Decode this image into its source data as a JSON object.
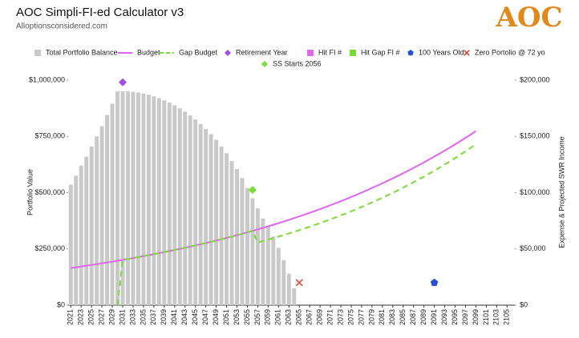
{
  "title": "AOC Simpli-FI-ed Calculator v3",
  "subtitle": "Alloptionsconsidered.com",
  "logo": "AOC",
  "chart_data": {
    "type": "combo",
    "x": [
      2021,
      2022,
      2023,
      2024,
      2025,
      2026,
      2027,
      2028,
      2029,
      2030,
      2031,
      2032,
      2033,
      2034,
      2035,
      2036,
      2037,
      2038,
      2039,
      2040,
      2041,
      2042,
      2043,
      2044,
      2045,
      2046,
      2047,
      2048,
      2049,
      2050,
      2051,
      2052,
      2053,
      2054,
      2055,
      2056,
      2057,
      2058,
      2059,
      2060,
      2061,
      2062,
      2063,
      2064,
      2065,
      2066,
      2067,
      2068,
      2069,
      2070,
      2071,
      2072,
      2073,
      2074,
      2075,
      2076,
      2077,
      2078,
      2079,
      2080,
      2081,
      2082,
      2083,
      2084,
      2085,
      2086,
      2087,
      2088,
      2089,
      2090,
      2091,
      2092,
      2093,
      2094,
      2095,
      2096,
      2097,
      2098,
      2099,
      2100,
      2101,
      2102,
      2103,
      2104,
      2105,
      2106
    ],
    "xlim": [
      2020.5,
      2106.5
    ],
    "xticks": [
      2021,
      2023,
      2025,
      2027,
      2029,
      2031,
      2033,
      2035,
      2037,
      2039,
      2041,
      2043,
      2045,
      2047,
      2049,
      2051,
      2053,
      2055,
      2057,
      2059,
      2061,
      2063,
      2065,
      2067,
      2069,
      2071,
      2073,
      2075,
      2077,
      2079,
      2081,
      2083,
      2085,
      2087,
      2089,
      2091,
      2093,
      2095,
      2097,
      2099,
      2101,
      2103,
      2105
    ],
    "ylim": [
      0,
      1000000
    ],
    "yticks": [
      {
        "value": 0,
        "label": "$0"
      },
      {
        "value": 250000,
        "label": "$250,000"
      },
      {
        "value": 500000,
        "label": "$500,000"
      },
      {
        "value": 750000,
        "label": "$750,000"
      },
      {
        "value": 1000000,
        "label": "$1,000,000"
      }
    ],
    "y2lim": [
      0,
      200000
    ],
    "y2ticks": [
      {
        "value": 0,
        "label": "$0"
      },
      {
        "value": 50000,
        "label": "$50,000"
      },
      {
        "value": 100000,
        "label": "$100,000"
      },
      {
        "value": 150000,
        "label": "$150,000"
      },
      {
        "value": 200000,
        "label": "$200,000"
      }
    ],
    "ylabel": "Portfolio Value",
    "y2label": "Expense & Projected SWR Income",
    "series": [
      {
        "name": "Total Portfolio Balance",
        "kind": "bar",
        "color": "#c9c9c9",
        "values": [
          535000,
          575000,
          620000,
          660000,
          705000,
          750000,
          795000,
          845000,
          895000,
          950000,
          950000,
          950000,
          948000,
          945000,
          940000,
          935000,
          928000,
          920000,
          910000,
          900000,
          888000,
          875000,
          860000,
          843000,
          825000,
          805000,
          783000,
          760000,
          735000,
          705000,
          675000,
          640000,
          605000,
          565000,
          520000,
          475000,
          430000,
          385000,
          350000,
          305000,
          255000,
          200000,
          140000,
          75000,
          null,
          null,
          null,
          null,
          null,
          null,
          null,
          null,
          null,
          null,
          null,
          null,
          null,
          null,
          null,
          null,
          null,
          null,
          null,
          null,
          null,
          null,
          null,
          null,
          null,
          null,
          null,
          null,
          null,
          null,
          null,
          null,
          null,
          null,
          null,
          null,
          null,
          null,
          null,
          null,
          null,
          null
        ]
      },
      {
        "name": "Budget",
        "kind": "line",
        "axis": "y2",
        "color": "#e066f0",
        "dash": false,
        "values": [
          33000,
          33660,
          34330,
          35020,
          35720,
          36430,
          37160,
          37910,
          38660,
          39440,
          40230,
          41030,
          41850,
          42690,
          43540,
          44410,
          45300,
          46210,
          47130,
          48070,
          49040,
          50020,
          51020,
          52040,
          53080,
          54140,
          55220,
          56330,
          57450,
          58600,
          59780,
          60970,
          62190,
          63440,
          64710,
          66000,
          67320,
          68670,
          70040,
          71440,
          72870,
          74330,
          75810,
          77330,
          78880,
          80450,
          82060,
          83700,
          85380,
          87090,
          88830,
          90600,
          92420,
          94260,
          96150,
          98070,
          100040,
          102040,
          104080,
          106160,
          108280,
          110450,
          112660,
          114910,
          117210,
          119550,
          121940,
          124380,
          126870,
          129410,
          132000,
          134640,
          137330,
          140080,
          142880,
          145730,
          148650,
          151620,
          154650,
          null,
          null,
          null,
          null,
          null,
          null,
          null
        ]
      },
      {
        "name": "Gap Budget",
        "kind": "line",
        "axis": "y2",
        "color": "#77dd33",
        "dash": true,
        "values": [
          null,
          null,
          null,
          null,
          null,
          null,
          null,
          null,
          null,
          0,
          40230,
          41030,
          41850,
          42690,
          43540,
          44410,
          45300,
          46210,
          47130,
          48070,
          49040,
          50020,
          51020,
          52040,
          53080,
          54140,
          55220,
          56330,
          57450,
          58600,
          59780,
          60970,
          62190,
          63440,
          64710,
          66000,
          55700,
          56960,
          58260,
          59580,
          60930,
          62320,
          63730,
          65180,
          66660,
          68170,
          69720,
          71300,
          72920,
          74570,
          76270,
          78000,
          79770,
          81580,
          83430,
          85330,
          87260,
          89240,
          91270,
          93340,
          95460,
          97630,
          99840,
          102110,
          104430,
          106800,
          109220,
          111700,
          114240,
          116830,
          119480,
          122190,
          124970,
          127800,
          130700,
          133670,
          136700,
          139810,
          142980,
          null,
          null,
          null,
          null,
          null,
          null,
          null
        ]
      },
      {
        "name": "Retirement Year",
        "kind": "marker",
        "shape": "diamond",
        "color": "#a64de6",
        "points": [
          {
            "x": 2031,
            "value": 990000
          }
        ]
      },
      {
        "name": "Hit FI #",
        "kind": "marker",
        "shape": "square",
        "color": "#e066f0",
        "points": []
      },
      {
        "name": "Hit Gap FI #",
        "kind": "marker",
        "shape": "square",
        "color": "#77dd33",
        "points": []
      },
      {
        "name": "100 Years Old",
        "kind": "marker",
        "shape": "pentagon",
        "color": "#2a4fd6",
        "points": [
          {
            "x": 2091,
            "value": 100000
          }
        ]
      },
      {
        "name": "Zero Portolio @ 72 yo",
        "kind": "marker",
        "shape": "x",
        "color": "#e03a2a",
        "points": [
          {
            "x": 2065,
            "value": 100000
          }
        ]
      },
      {
        "name": "SS Starts 2056",
        "kind": "marker",
        "shape": "diamond",
        "color": "#77dd33",
        "points": [
          {
            "x": 2056,
            "value": 512000
          }
        ]
      }
    ]
  }
}
